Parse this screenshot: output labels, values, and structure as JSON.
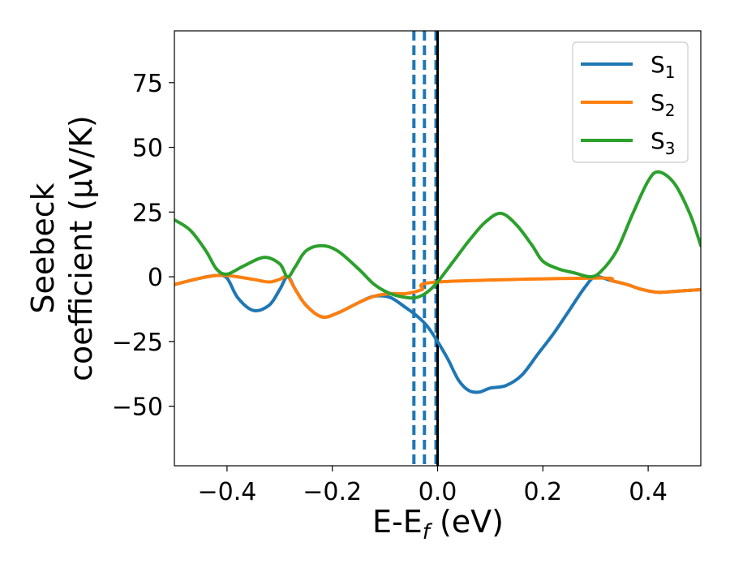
{
  "chart_data": {
    "type": "line",
    "xlabel": "E-E_f (eV)",
    "xlabel_main": "E-E",
    "xlabel_sub": "f",
    "xlabel_unit": " (eV)",
    "ylabel_line1": "Seebeck",
    "ylabel_line2": "coefficient  (μV/K)",
    "xlim": [
      -0.5,
      0.5
    ],
    "ylim": [
      -73,
      95
    ],
    "xticks": [
      -0.4,
      -0.2,
      0.0,
      0.2,
      0.4
    ],
    "xtick_labels": [
      "−0.4",
      "−0.2",
      "0.0",
      "0.2",
      "0.4"
    ],
    "yticks": [
      -50,
      -25,
      0,
      25,
      50,
      75
    ],
    "ytick_labels": [
      "−50",
      "−25",
      "0",
      "25",
      "50",
      "75"
    ],
    "legend_position": "top-right",
    "vlines": [
      {
        "x": -0.045,
        "style": "dashed",
        "color": "#1f77b4"
      },
      {
        "x": -0.025,
        "style": "dashed",
        "color": "#1f77b4"
      },
      {
        "x": -0.003,
        "style": "dashed",
        "color": "#1f77b4"
      },
      {
        "x": 0.0,
        "style": "solid",
        "color": "#000000"
      }
    ],
    "series": [
      {
        "name": "S1",
        "label_main": "S",
        "label_sub": "1",
        "color": "#1f77b4",
        "points": [
          [
            -0.5,
            -3
          ],
          [
            -0.45,
            -0.5
          ],
          [
            -0.42,
            0.5
          ],
          [
            -0.4,
            -0.5
          ],
          [
            -0.38,
            -8
          ],
          [
            -0.35,
            -13
          ],
          [
            -0.32,
            -11
          ],
          [
            -0.3,
            -5
          ],
          [
            -0.285,
            0
          ],
          [
            -0.27,
            -5
          ],
          [
            -0.25,
            -11
          ],
          [
            -0.22,
            -15.5
          ],
          [
            -0.19,
            -14
          ],
          [
            -0.15,
            -10
          ],
          [
            -0.12,
            -7.5
          ],
          [
            -0.09,
            -8
          ],
          [
            -0.06,
            -12
          ],
          [
            -0.04,
            -15
          ],
          [
            -0.02,
            -19
          ],
          [
            0.0,
            -25
          ],
          [
            0.02,
            -32
          ],
          [
            0.04,
            -40
          ],
          [
            0.06,
            -44
          ],
          [
            0.08,
            -44.5
          ],
          [
            0.1,
            -43
          ],
          [
            0.13,
            -42
          ],
          [
            0.16,
            -38
          ],
          [
            0.19,
            -30
          ],
          [
            0.22,
            -22
          ],
          [
            0.25,
            -13
          ],
          [
            0.28,
            -4
          ],
          [
            0.3,
            0
          ],
          [
            0.33,
            -1.5
          ],
          [
            0.36,
            -3
          ],
          [
            0.39,
            -5
          ],
          [
            0.42,
            -6
          ],
          [
            0.46,
            -5.5
          ],
          [
            0.5,
            -5
          ]
        ]
      },
      {
        "name": "S2",
        "label_main": "S",
        "label_sub": "2",
        "color": "#ff7f0e",
        "points": [
          [
            -0.5,
            -3
          ],
          [
            -0.45,
            -0.5
          ],
          [
            -0.42,
            0.5
          ],
          [
            -0.4,
            0.5
          ],
          [
            -0.38,
            0
          ],
          [
            -0.35,
            -1
          ],
          [
            -0.32,
            -2
          ],
          [
            -0.3,
            -1
          ],
          [
            -0.285,
            0
          ],
          [
            -0.27,
            -5
          ],
          [
            -0.25,
            -11
          ],
          [
            -0.22,
            -15.5
          ],
          [
            -0.19,
            -14
          ],
          [
            -0.15,
            -10
          ],
          [
            -0.12,
            -7.5
          ],
          [
            -0.09,
            -6.5
          ],
          [
            -0.06,
            -6.5
          ],
          [
            -0.03,
            -5
          ],
          [
            0.0,
            -2
          ],
          [
            0.3,
            -0.5
          ],
          [
            0.33,
            -1.5
          ],
          [
            0.36,
            -3
          ],
          [
            0.39,
            -5
          ],
          [
            0.42,
            -6
          ],
          [
            0.46,
            -5.5
          ],
          [
            0.5,
            -5
          ]
        ]
      },
      {
        "name": "S3",
        "label_main": "S",
        "label_sub": "3",
        "color": "#2ca02c",
        "points": [
          [
            -0.5,
            22
          ],
          [
            -0.47,
            18
          ],
          [
            -0.44,
            10
          ],
          [
            -0.42,
            3
          ],
          [
            -0.4,
            1
          ],
          [
            -0.37,
            4
          ],
          [
            -0.33,
            7.5
          ],
          [
            -0.3,
            5
          ],
          [
            -0.285,
            0
          ],
          [
            -0.27,
            4
          ],
          [
            -0.25,
            10
          ],
          [
            -0.22,
            12
          ],
          [
            -0.19,
            10
          ],
          [
            -0.15,
            3
          ],
          [
            -0.12,
            -3
          ],
          [
            -0.09,
            -6.5
          ],
          [
            -0.06,
            -8
          ],
          [
            -0.04,
            -8
          ],
          [
            -0.02,
            -6
          ],
          [
            0.0,
            -2
          ],
          [
            0.03,
            6
          ],
          [
            0.06,
            14
          ],
          [
            0.09,
            21
          ],
          [
            0.12,
            24.5
          ],
          [
            0.15,
            20
          ],
          [
            0.18,
            12
          ],
          [
            0.2,
            6
          ],
          [
            0.23,
            3
          ],
          [
            0.26,
            1.5
          ],
          [
            0.29,
            0
          ],
          [
            0.31,
            2
          ],
          [
            0.34,
            10
          ],
          [
            0.37,
            24
          ],
          [
            0.4,
            37
          ],
          [
            0.42,
            40.5
          ],
          [
            0.45,
            36
          ],
          [
            0.48,
            24
          ],
          [
            0.5,
            12
          ]
        ]
      }
    ]
  }
}
